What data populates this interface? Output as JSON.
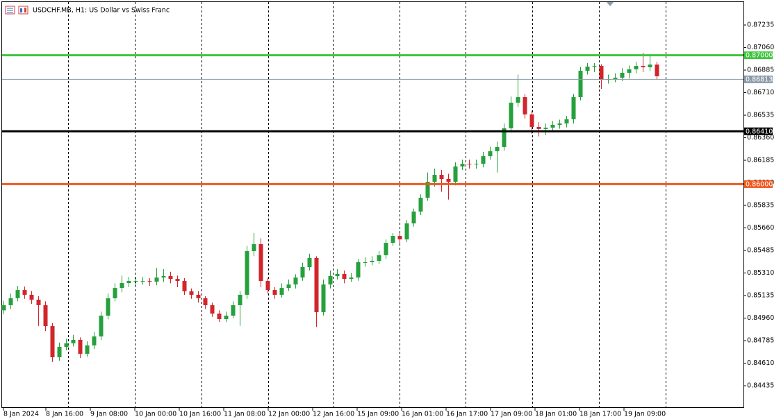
{
  "chart_data": {
    "type": "candlestick",
    "title": "USDCHF.MB, H1:  US Dollar vs Swiss Franc",
    "up_color": "#26a03c",
    "down_color": "#d0262b",
    "open": [
      0.8502,
      0.8506,
      0.85114,
      0.85178,
      0.85141,
      0.85103,
      0.8506,
      0.84898,
      0.84656,
      0.84737,
      0.84764,
      0.84791,
      0.84683,
      0.84748,
      0.84818,
      0.84979,
      0.85114,
      0.85194,
      0.85232,
      0.85248,
      0.85248,
      0.85248,
      0.85243,
      0.85275,
      0.85286,
      0.85264,
      0.85248,
      0.85168,
      0.85141,
      0.85114,
      0.8506,
      0.84995,
      0.84952,
      0.84979,
      0.8506,
      0.85141,
      0.8548,
      0.85534,
      0.85248,
      0.85178,
      0.85141,
      0.85194,
      0.85221,
      0.85275,
      0.85356,
      0.85426,
      0.85006,
      0.85221,
      0.85286,
      0.85302,
      0.85264,
      0.85275,
      0.85394,
      0.85394,
      0.85404,
      0.85448,
      0.85544,
      0.85598,
      0.85571,
      0.85695,
      0.85787,
      0.85894,
      0.86018,
      0.86072,
      0.8604,
      0.86018,
      0.86137,
      0.86158,
      0.86153,
      0.86158,
      0.86217,
      0.86255,
      0.86288,
      0.86433,
      0.86632,
      0.86675,
      0.86541,
      0.86444,
      0.86428,
      0.86438,
      0.8646,
      0.86471,
      0.86503,
      0.86675,
      0.8688,
      0.86912,
      0.86917,
      0.8681,
      0.86815,
      0.86826,
      0.86864,
      0.86891,
      0.86917,
      0.86907,
      0.86928
    ],
    "high": [
      0.85095,
      0.8515,
      0.8521,
      0.85205,
      0.8517,
      0.8513,
      0.8509,
      0.8492,
      0.8477,
      0.848,
      0.8483,
      0.8481,
      0.8478,
      0.8485,
      0.8501,
      0.8515,
      0.8523,
      0.8529,
      0.8528,
      0.85275,
      0.8528,
      0.8527,
      0.8535,
      0.8534,
      0.8532,
      0.8529,
      0.8527,
      0.8519,
      0.8517,
      0.8513,
      0.8508,
      0.8502,
      0.8501,
      0.8509,
      0.8517,
      0.8552,
      0.8562,
      0.8558,
      0.8527,
      0.852,
      0.8523,
      0.8526,
      0.853,
      0.8539,
      0.8546,
      0.8544,
      0.8526,
      0.8533,
      0.8534,
      0.8533,
      0.8531,
      0.8542,
      0.8543,
      0.8544,
      0.8548,
      0.8557,
      0.8562,
      0.8562,
      0.8572,
      0.8581,
      0.8592,
      0.8609,
      0.8612,
      0.8611,
      0.8608,
      0.8617,
      0.8619,
      0.8619,
      0.8619,
      0.8625,
      0.8629,
      0.8633,
      0.8647,
      0.8668,
      0.8685,
      0.867,
      0.8657,
      0.8648,
      0.8647,
      0.8649,
      0.865,
      0.8653,
      0.867,
      0.8691,
      0.8694,
      0.8694,
      0.8693,
      0.8685,
      0.8686,
      0.869,
      0.8692,
      0.8695,
      0.8702,
      0.87,
      0.8695
    ],
    "low": [
      0.8499,
      0.8503,
      0.8509,
      0.8511,
      0.8507,
      0.849,
      0.8486,
      0.8462,
      0.8463,
      0.8471,
      0.8474,
      0.8465,
      0.8466,
      0.8472,
      0.8479,
      0.8495,
      0.8509,
      0.8516,
      0.852,
      0.85215,
      0.8522,
      0.8521,
      0.85215,
      0.8524,
      0.8523,
      0.852,
      0.8514,
      0.8511,
      0.8508,
      0.8503,
      0.8497,
      0.8493,
      0.8493,
      0.8496,
      0.849,
      0.8511,
      0.8544,
      0.852,
      0.8515,
      0.8511,
      0.8512,
      0.8517,
      0.8519,
      0.8525,
      0.8533,
      0.8489,
      0.8498,
      0.8519,
      0.8526,
      0.8523,
      0.8524,
      0.8525,
      0.8536,
      0.8537,
      0.8538,
      0.8542,
      0.8552,
      0.8554,
      0.8555,
      0.8567,
      0.8576,
      0.8587,
      0.8598,
      0.8594,
      0.8588,
      0.8599,
      0.8611,
      0.8612,
      0.8612,
      0.8613,
      0.8619,
      0.8609,
      0.8626,
      0.864,
      0.866,
      0.8651,
      0.8639,
      0.8637,
      0.8638,
      0.8641,
      0.8643,
      0.8644,
      0.8647,
      0.8665,
      0.8685,
      0.8687,
      0.8674,
      0.8678,
      0.8679,
      0.868,
      0.8682,
      0.8686,
      0.8687,
      0.8688,
      0.8681
    ],
    "close": [
      0.8506,
      0.85114,
      0.85178,
      0.85141,
      0.85103,
      0.8506,
      0.84898,
      0.84656,
      0.84737,
      0.84764,
      0.84791,
      0.84683,
      0.84748,
      0.84818,
      0.84979,
      0.85114,
      0.85194,
      0.85232,
      0.85248,
      0.85248,
      0.85248,
      0.85243,
      0.85275,
      0.85286,
      0.85264,
      0.85248,
      0.85168,
      0.85141,
      0.85114,
      0.8506,
      0.84995,
      0.84952,
      0.84979,
      0.8506,
      0.85141,
      0.8548,
      0.85534,
      0.85248,
      0.85178,
      0.85141,
      0.85194,
      0.85221,
      0.85275,
      0.85356,
      0.85426,
      0.85006,
      0.85221,
      0.85286,
      0.85302,
      0.85264,
      0.85275,
      0.85394,
      0.85394,
      0.85404,
      0.85448,
      0.85544,
      0.85598,
      0.85571,
      0.85695,
      0.85787,
      0.85894,
      0.86018,
      0.86072,
      0.8604,
      0.86018,
      0.86137,
      0.86158,
      0.86153,
      0.86158,
      0.86217,
      0.86255,
      0.86288,
      0.86433,
      0.86632,
      0.86675,
      0.86541,
      0.86444,
      0.86428,
      0.86438,
      0.8646,
      0.86471,
      0.86503,
      0.86675,
      0.8688,
      0.86912,
      0.86917,
      0.8681,
      0.86815,
      0.86826,
      0.86864,
      0.86891,
      0.86917,
      0.86907,
      0.86928,
      0.86837
    ],
    "xlim": [
      -0.5,
      106.5
    ],
    "xticks": [
      {
        "value": 0,
        "label": "8 Jan 2024"
      },
      {
        "value": 6.1,
        "label": "8 Jan 16:00"
      },
      {
        "value": 12.5,
        "label": "9 Jan 08:00"
      },
      {
        "value": 18.9,
        "label": "10 Jan 00:00"
      },
      {
        "value": 25.3,
        "label": "10 Jan 16:00"
      },
      {
        "value": 31.7,
        "label": "11 Jan 08:00"
      },
      {
        "value": 38.1,
        "label": "12 Jan 00:00"
      },
      {
        "value": 44.5,
        "label": "12 Jan 16:00"
      },
      {
        "value": 50.9,
        "label": "15 Jan 09:00"
      },
      {
        "value": 57.3,
        "label": "16 Jan 01:00"
      },
      {
        "value": 63.7,
        "label": "16 Jan 17:00"
      },
      {
        "value": 70.1,
        "label": "17 Jan 09:00"
      },
      {
        "value": 76.5,
        "label": "18 Jan 01:00"
      },
      {
        "value": 82.9,
        "label": "18 Jan 17:00"
      },
      {
        "value": 89.3,
        "label": "19 Jan 09:00"
      }
    ],
    "xgrid": [
      9.3,
      18.9,
      28.5,
      38.1,
      47.4,
      57.0,
      66.5,
      76.1,
      85.7,
      95.3
    ],
    "ylim": [
      0.84263,
      0.87429
    ],
    "yticks": [
      {
        "value": 0.87235,
        "label": "0.87235"
      },
      {
        "value": 0.8706,
        "label": "0.87060"
      },
      {
        "value": 0.86885,
        "label": "0.86885"
      },
      {
        "value": 0.8671,
        "label": "0.86710"
      },
      {
        "value": 0.86535,
        "label": "0.86535"
      },
      {
        "value": 0.8636,
        "label": "0.86360"
      },
      {
        "value": 0.86185,
        "label": "0.86185"
      },
      {
        "value": 0.8601,
        "label": "0.86010"
      },
      {
        "value": 0.85835,
        "label": "0.85835"
      },
      {
        "value": 0.8566,
        "label": "0.85660"
      },
      {
        "value": 0.85485,
        "label": "0.85485"
      },
      {
        "value": 0.8531,
        "label": "0.85310"
      },
      {
        "value": 0.85135,
        "label": "0.85135"
      },
      {
        "value": 0.8496,
        "label": "0.84960"
      },
      {
        "value": 0.84785,
        "label": "0.84785"
      },
      {
        "value": 0.8461,
        "label": "0.84610"
      },
      {
        "value": 0.84435,
        "label": "0.84435"
      }
    ],
    "levels": [
      {
        "value": 0.87,
        "label": "0.87000",
        "color": "#3fc43f",
        "width": 3
      },
      {
        "value": 0.86813,
        "label": "0.86813",
        "color": "#8a9aa8",
        "width": 1
      },
      {
        "value": 0.8641,
        "label": "0.86410",
        "color": "#000000",
        "width": 3
      },
      {
        "value": 0.86,
        "label": "0.86000",
        "color": "#f2561d",
        "width": 3
      }
    ]
  }
}
